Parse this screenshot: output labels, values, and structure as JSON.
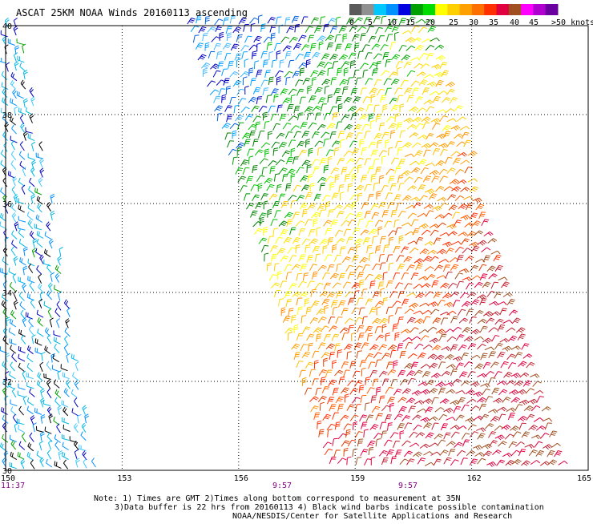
{
  "title": "ASCAT 25KM NOAA Winds 20160113 ascending",
  "colorbar": {
    "labels": [
      "0",
      "5",
      "10",
      "15",
      "20",
      "25",
      "30",
      "35",
      "40",
      "45",
      ">50 knots"
    ],
    "colors": [
      "#5a5a5a",
      "#909090",
      "#00c8ff",
      "#0090ff",
      "#0000e0",
      "#00a000",
      "#00dc00",
      "#ffff00",
      "#ffd000",
      "#ffa000",
      "#ff7000",
      "#ff3000",
      "#e00040",
      "#a05020",
      "#ff00ff",
      "#b000d0",
      "#6a00a0"
    ]
  },
  "axes": {
    "lon_ticks": [
      "150",
      "153",
      "156",
      "159",
      "162",
      "165"
    ],
    "lat_ticks": [
      "40",
      "38",
      "36",
      "34",
      "32",
      "30"
    ]
  },
  "swath_times": [
    {
      "label": "11:37",
      "color": "#800080"
    },
    {
      "label": "9:57",
      "color": "#800080"
    },
    {
      "label": "9:57",
      "color": "#800080"
    }
  ],
  "notes": {
    "line1": "Note: 1) Times are GMT 2)Times along bottom correspond to measurement at 35N",
    "line2": "3)Data buffer is 22 hrs from 20160113 4) Black wind barbs indicate possible contamination",
    "line3": "NOAA/NESDIS/Center for Satellite Applications and Research"
  }
}
